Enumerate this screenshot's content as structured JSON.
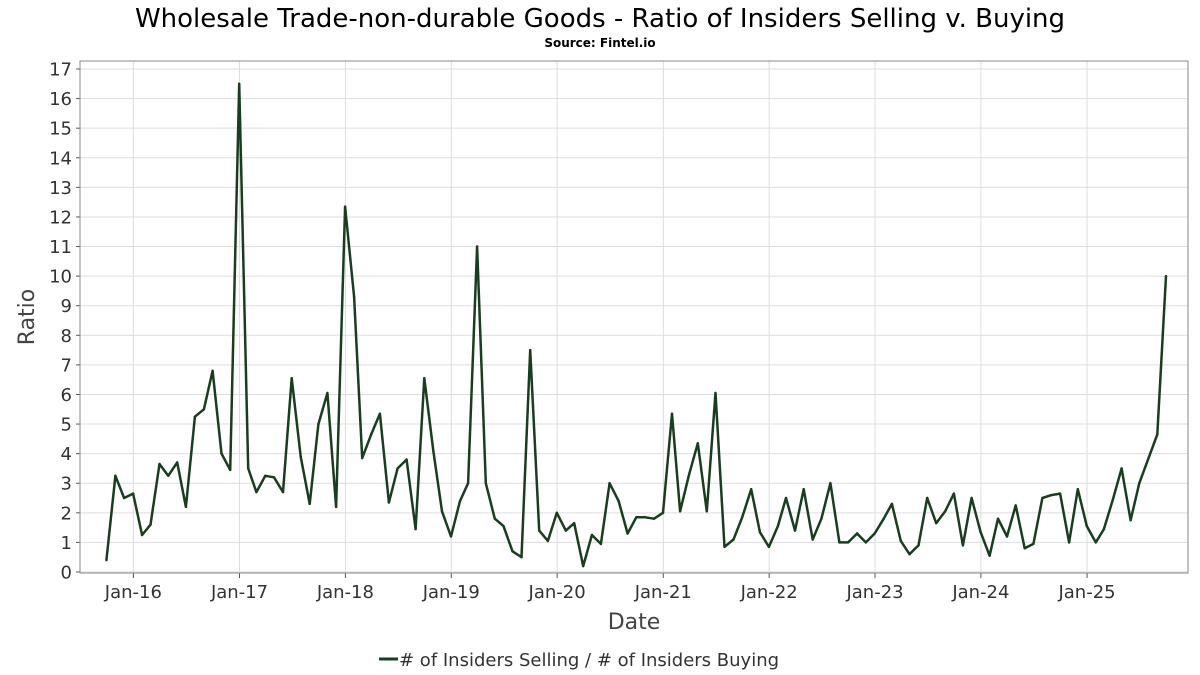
{
  "chart_data": {
    "type": "line",
    "title": "Wholesale Trade-non-durable Goods - Ratio of Insiders Selling v. Buying",
    "subtitle": "Source: Fintel.io",
    "xlabel": "Date",
    "ylabel": "Ratio",
    "ylim": [
      0,
      17
    ],
    "yticks": [
      "0",
      "1",
      "2",
      "3",
      "4",
      "5",
      "6",
      "7",
      "8",
      "9",
      "10",
      "11",
      "12",
      "13",
      "14",
      "15",
      "16",
      "17"
    ],
    "xlim": [
      "2015-07-01",
      "2025-12-15"
    ],
    "xticks": [
      {
        "label": "Jan-16",
        "date": "2016-01-01"
      },
      {
        "label": "Jan-17",
        "date": "2017-01-01"
      },
      {
        "label": "Jan-18",
        "date": "2018-01-01"
      },
      {
        "label": "Jan-19",
        "date": "2019-01-01"
      },
      {
        "label": "Jan-20",
        "date": "2020-01-01"
      },
      {
        "label": "Jan-21",
        "date": "2021-01-01"
      },
      {
        "label": "Jan-22",
        "date": "2022-01-01"
      },
      {
        "label": "Jan-23",
        "date": "2023-01-01"
      },
      {
        "label": "Jan-24",
        "date": "2024-01-01"
      },
      {
        "label": "Jan-25",
        "date": "2025-01-01"
      }
    ],
    "grid": true,
    "legend": "bottom-center",
    "series": [
      {
        "name": "# of Insiders Selling / # of Insiders Buying",
        "color": "#1a3d1f",
        "points": [
          [
            "2015-09-30",
            0.4
          ],
          [
            "2015-10-31",
            3.25
          ],
          [
            "2015-11-30",
            2.5
          ],
          [
            "2015-12-31",
            2.65
          ],
          [
            "2016-01-31",
            1.25
          ],
          [
            "2016-02-29",
            1.6
          ],
          [
            "2016-03-31",
            3.65
          ],
          [
            "2016-04-30",
            3.25
          ],
          [
            "2016-05-31",
            3.7
          ],
          [
            "2016-06-30",
            2.2
          ],
          [
            "2016-07-31",
            5.25
          ],
          [
            "2016-08-31",
            5.5
          ],
          [
            "2016-09-30",
            6.8
          ],
          [
            "2016-10-31",
            4.0
          ],
          [
            "2016-11-30",
            3.45
          ],
          [
            "2016-12-31",
            16.5
          ],
          [
            "2017-01-31",
            3.5
          ],
          [
            "2017-02-28",
            2.7
          ],
          [
            "2017-03-31",
            3.25
          ],
          [
            "2017-04-30",
            3.2
          ],
          [
            "2017-05-31",
            2.7
          ],
          [
            "2017-06-30",
            6.55
          ],
          [
            "2017-07-31",
            3.9
          ],
          [
            "2017-08-31",
            2.3
          ],
          [
            "2017-09-30",
            5.0
          ],
          [
            "2017-10-31",
            6.05
          ],
          [
            "2017-11-30",
            2.2
          ],
          [
            "2017-12-31",
            12.35
          ],
          [
            "2018-01-31",
            9.3
          ],
          [
            "2018-02-28",
            3.85
          ],
          [
            "2018-03-31",
            4.65
          ],
          [
            "2018-04-30",
            5.35
          ],
          [
            "2018-05-31",
            2.35
          ],
          [
            "2018-06-30",
            3.5
          ],
          [
            "2018-07-31",
            3.8
          ],
          [
            "2018-08-31",
            1.45
          ],
          [
            "2018-09-30",
            6.55
          ],
          [
            "2018-10-31",
            4.1
          ],
          [
            "2018-11-30",
            2.05
          ],
          [
            "2018-12-31",
            1.2
          ],
          [
            "2019-01-31",
            2.4
          ],
          [
            "2019-02-28",
            3.0
          ],
          [
            "2019-03-31",
            11.0
          ],
          [
            "2019-04-30",
            3.0
          ],
          [
            "2019-05-31",
            1.8
          ],
          [
            "2019-06-30",
            1.55
          ],
          [
            "2019-07-31",
            0.7
          ],
          [
            "2019-08-31",
            0.5
          ],
          [
            "2019-09-30",
            7.5
          ],
          [
            "2019-10-31",
            1.4
          ],
          [
            "2019-11-30",
            1.05
          ],
          [
            "2019-12-31",
            2.0
          ],
          [
            "2020-01-31",
            1.4
          ],
          [
            "2020-02-29",
            1.65
          ],
          [
            "2020-03-31",
            0.2
          ],
          [
            "2020-04-30",
            1.25
          ],
          [
            "2020-05-31",
            0.95
          ],
          [
            "2020-06-30",
            3.0
          ],
          [
            "2020-07-31",
            2.4
          ],
          [
            "2020-08-31",
            1.3
          ],
          [
            "2020-09-30",
            1.85
          ],
          [
            "2020-10-31",
            1.85
          ],
          [
            "2020-11-30",
            1.8
          ],
          [
            "2020-12-31",
            2.0
          ],
          [
            "2021-01-31",
            5.35
          ],
          [
            "2021-02-28",
            2.05
          ],
          [
            "2021-03-31",
            3.3
          ],
          [
            "2021-04-30",
            4.35
          ],
          [
            "2021-05-31",
            2.05
          ],
          [
            "2021-06-30",
            6.05
          ],
          [
            "2021-07-31",
            0.85
          ],
          [
            "2021-08-31",
            1.1
          ],
          [
            "2021-09-30",
            1.85
          ],
          [
            "2021-10-31",
            2.8
          ],
          [
            "2021-11-30",
            1.35
          ],
          [
            "2021-12-31",
            0.85
          ],
          [
            "2022-01-31",
            1.55
          ],
          [
            "2022-02-28",
            2.5
          ],
          [
            "2022-03-31",
            1.4
          ],
          [
            "2022-04-30",
            2.8
          ],
          [
            "2022-05-31",
            1.1
          ],
          [
            "2022-06-30",
            1.8
          ],
          [
            "2022-07-31",
            3.0
          ],
          [
            "2022-08-31",
            1.0
          ],
          [
            "2022-09-30",
            1.0
          ],
          [
            "2022-10-31",
            1.3
          ],
          [
            "2022-11-30",
            1.0
          ],
          [
            "2022-12-31",
            1.3
          ],
          [
            "2023-01-31",
            1.8
          ],
          [
            "2023-02-28",
            2.3
          ],
          [
            "2023-03-31",
            1.05
          ],
          [
            "2023-04-30",
            0.6
          ],
          [
            "2023-05-31",
            0.9
          ],
          [
            "2023-06-30",
            2.5
          ],
          [
            "2023-07-31",
            1.65
          ],
          [
            "2023-08-31",
            2.05
          ],
          [
            "2023-09-30",
            2.65
          ],
          [
            "2023-10-31",
            0.9
          ],
          [
            "2023-11-30",
            2.5
          ],
          [
            "2023-12-31",
            1.35
          ],
          [
            "2024-01-31",
            0.55
          ],
          [
            "2024-02-29",
            1.8
          ],
          [
            "2024-03-31",
            1.2
          ],
          [
            "2024-04-30",
            2.25
          ],
          [
            "2024-05-31",
            0.8
          ],
          [
            "2024-06-30",
            0.95
          ],
          [
            "2024-07-31",
            2.5
          ],
          [
            "2024-08-31",
            2.6
          ],
          [
            "2024-09-30",
            2.65
          ],
          [
            "2024-10-31",
            1.0
          ],
          [
            "2024-11-30",
            2.8
          ],
          [
            "2024-12-31",
            1.55
          ],
          [
            "2025-01-31",
            1.0
          ],
          [
            "2025-02-28",
            1.45
          ],
          [
            "2025-03-31",
            2.45
          ],
          [
            "2025-04-30",
            3.5
          ],
          [
            "2025-05-31",
            1.75
          ],
          [
            "2025-06-30",
            3.0
          ],
          [
            "2025-08-31",
            4.65
          ],
          [
            "2025-09-30",
            10.0
          ]
        ]
      }
    ]
  }
}
